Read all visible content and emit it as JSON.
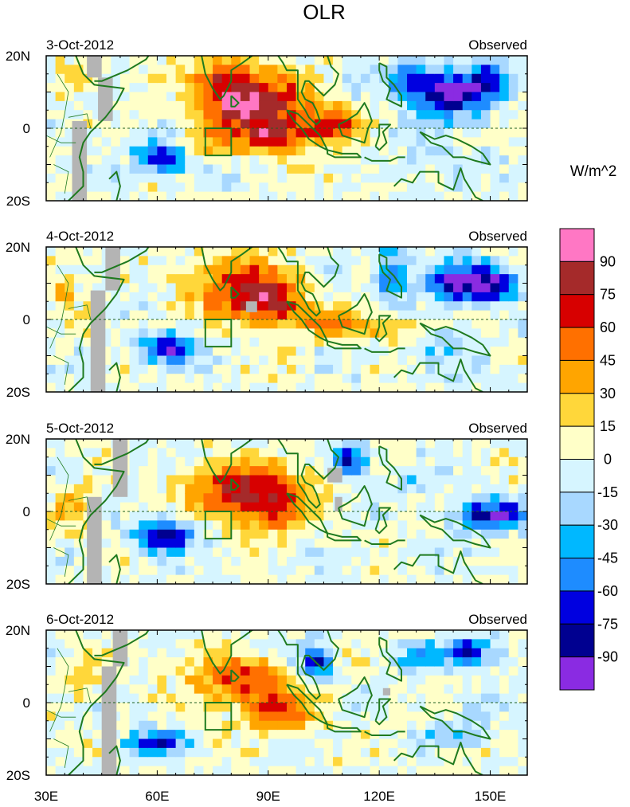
{
  "chart_data": {
    "type": "heatmap",
    "title": "OLR",
    "unit_label": "W/m^2",
    "x_ticks": [
      "30E",
      "60E",
      "90E",
      "120E",
      "150E"
    ],
    "x_tick_values": [
      30,
      60,
      90,
      120,
      150
    ],
    "x_range": [
      30,
      160
    ],
    "y_ticks": [
      "20N",
      "0",
      "20S"
    ],
    "y_tick_values": [
      20,
      0,
      -20
    ],
    "y_range": [
      -20,
      20
    ],
    "colorbar": {
      "labels": [
        "90",
        "75",
        "60",
        "45",
        "30",
        "15",
        "0",
        "-15",
        "-30",
        "-45",
        "-60",
        "-75",
        "-90"
      ],
      "colors": [
        "#ff77c4",
        "#a52a2a",
        "#d70000",
        "#ff7000",
        "#ffa500",
        "#ffd73a",
        "#ffffc8",
        "#d6f5ff",
        "#a8d8ff",
        "#00b8ff",
        "#1e8cff",
        "#0000e0",
        "#000090",
        "#8a2be2"
      ]
    },
    "mask_color": "#b4b4b4",
    "coast_color": "#1f7a1f",
    "panels": [
      {
        "date": "3-Oct-2012",
        "label": "Observed",
        "features": [
          {
            "lon": 88,
            "lat": 6,
            "value": 75,
            "sx": 14,
            "sy": 9
          },
          {
            "lon": 78,
            "lat": 12,
            "value": 60,
            "sx": 9,
            "sy": 7
          },
          {
            "lon": 108,
            "lat": 1,
            "value": 65,
            "sx": 7,
            "sy": 4
          },
          {
            "lon": 92,
            "lat": -2,
            "value": 50,
            "sx": 10,
            "sy": 5
          },
          {
            "lon": 72,
            "lat": -5,
            "value": 30,
            "sx": 8,
            "sy": 4
          },
          {
            "lon": 62,
            "lat": -8,
            "value": -90,
            "sx": 7,
            "sy": 4
          },
          {
            "lon": 140,
            "lat": 9,
            "value": -95,
            "sx": 11,
            "sy": 6
          },
          {
            "lon": 128,
            "lat": 14,
            "value": -55,
            "sx": 7,
            "sy": 5
          },
          {
            "lon": 150,
            "lat": 14,
            "value": -50,
            "sx": 6,
            "sy": 4
          },
          {
            "lon": 38,
            "lat": 14,
            "value": 25,
            "sx": 6,
            "sy": 5
          },
          {
            "lon": 135,
            "lat": -8,
            "value": -20,
            "sx": 14,
            "sy": 6
          },
          {
            "lon": 110,
            "lat": -14,
            "value": 10,
            "sx": 12,
            "sy": 4
          }
        ]
      },
      {
        "date": "4-Oct-2012",
        "label": "Observed",
        "features": [
          {
            "lon": 82,
            "lat": 9,
            "value": 70,
            "sx": 13,
            "sy": 8
          },
          {
            "lon": 92,
            "lat": 4,
            "value": 55,
            "sx": 9,
            "sy": 6
          },
          {
            "lon": 108,
            "lat": -1,
            "value": 45,
            "sx": 10,
            "sy": 4
          },
          {
            "lon": 126,
            "lat": -2,
            "value": 35,
            "sx": 8,
            "sy": 3
          },
          {
            "lon": 63,
            "lat": -8,
            "value": -90,
            "sx": 7,
            "sy": 4
          },
          {
            "lon": 142,
            "lat": 10,
            "value": -90,
            "sx": 10,
            "sy": 5
          },
          {
            "lon": 123,
            "lat": 12,
            "value": -55,
            "sx": 5,
            "sy": 7
          },
          {
            "lon": 152,
            "lat": 10,
            "value": -55,
            "sx": 6,
            "sy": 5
          },
          {
            "lon": 35,
            "lat": 9,
            "value": 25,
            "sx": 5,
            "sy": 6
          },
          {
            "lon": 138,
            "lat": -8,
            "value": -25,
            "sx": 10,
            "sy": 6
          }
        ]
      },
      {
        "date": "5-Oct-2012",
        "label": "Observed",
        "features": [
          {
            "lon": 80,
            "lat": 6,
            "value": 70,
            "sx": 11,
            "sy": 8
          },
          {
            "lon": 92,
            "lat": 2,
            "value": 65,
            "sx": 8,
            "sy": 8
          },
          {
            "lon": 62,
            "lat": -7,
            "value": -90,
            "sx": 8,
            "sy": 4
          },
          {
            "lon": 150,
            "lat": -1,
            "value": -85,
            "sx": 10,
            "sy": 4
          },
          {
            "lon": 112,
            "lat": 14,
            "value": -70,
            "sx": 5,
            "sy": 5
          },
          {
            "lon": 128,
            "lat": 8,
            "value": -25,
            "sx": 6,
            "sy": 5
          },
          {
            "lon": 38,
            "lat": 2,
            "value": 25,
            "sx": 6,
            "sy": 8
          },
          {
            "lon": 104,
            "lat": 10,
            "value": 20,
            "sx": 6,
            "sy": 6
          }
        ]
      },
      {
        "date": "6-Oct-2012",
        "label": "Observed",
        "features": [
          {
            "lon": 82,
            "lat": 6,
            "value": 60,
            "sx": 13,
            "sy": 7
          },
          {
            "lon": 93,
            "lat": -3,
            "value": 55,
            "sx": 9,
            "sy": 6
          },
          {
            "lon": 103,
            "lat": 11,
            "value": -75,
            "sx": 4,
            "sy": 5
          },
          {
            "lon": 60,
            "lat": -11,
            "value": -70,
            "sx": 8,
            "sy": 3
          },
          {
            "lon": 144,
            "lat": 14,
            "value": -75,
            "sx": 7,
            "sy": 4
          },
          {
            "lon": 130,
            "lat": 12,
            "value": -30,
            "sx": 6,
            "sy": 4
          },
          {
            "lon": 40,
            "lat": 7,
            "value": 20,
            "sx": 6,
            "sy": 7
          },
          {
            "lon": 142,
            "lat": -8,
            "value": -25,
            "sx": 10,
            "sy": 5
          }
        ]
      }
    ],
    "box_region": {
      "lon": [
        73,
        80
      ],
      "lat": [
        -7.5,
        0
      ]
    },
    "grey_mask_columns": [
      [
        [
          41,
          45,
          14,
          20
        ],
        [
          37,
          41,
          -20,
          2
        ],
        [
          44,
          48,
          2,
          14
        ]
      ],
      [
        [
          46,
          50,
          8,
          20
        ],
        [
          42,
          46,
          -20,
          8
        ],
        [
          84,
          87,
          2,
          5
        ]
      ],
      [
        [
          48,
          52,
          4,
          20
        ],
        [
          41,
          45,
          -20,
          4
        ],
        [
          106,
          110,
          8,
          12
        ],
        [
          108,
          110,
          0,
          4
        ]
      ],
      [
        [
          48,
          52,
          10,
          20
        ],
        [
          45,
          49,
          -20,
          10
        ],
        [
          121,
          123,
          2,
          4
        ]
      ]
    ]
  }
}
